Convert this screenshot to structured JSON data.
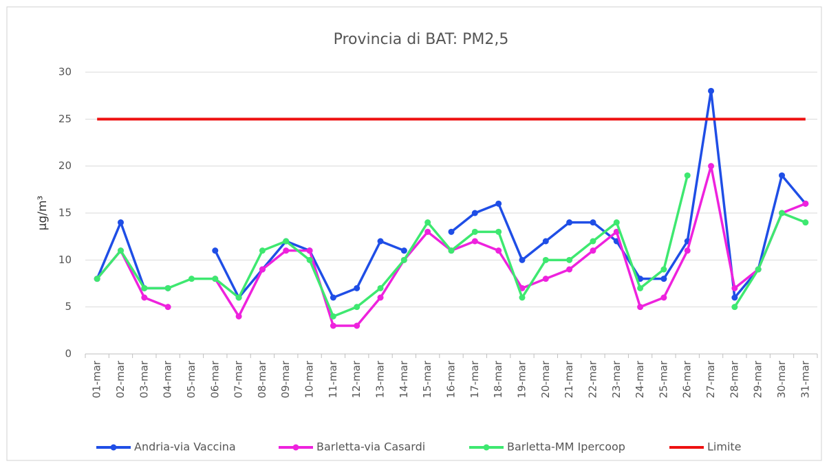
{
  "chart_data": {
    "type": "line",
    "title": "Provincia di BAT: PM2,5",
    "y_label": "µg/m³",
    "categories": [
      "01-mar",
      "02-mar",
      "03-mar",
      "04-mar",
      "05-mar",
      "06-mar",
      "07-mar",
      "08-mar",
      "09-mar",
      "10-mar",
      "11-mar",
      "12-mar",
      "13-mar",
      "14-mar",
      "15-mar",
      "16-mar",
      "17-mar",
      "18-mar",
      "19-mar",
      "20-mar",
      "21-mar",
      "22-mar",
      "23-mar",
      "24-mar",
      "25-mar",
      "26-mar",
      "27-mar",
      "28-mar",
      "29-mar",
      "30-mar",
      "31-mar"
    ],
    "series": [
      {
        "name": "Andria-via Vaccina",
        "color": "#1f4ee6",
        "markers": true,
        "values": [
          8,
          14,
          7,
          7,
          null,
          11,
          6,
          9,
          12,
          11,
          6,
          7,
          12,
          11,
          null,
          13,
          15,
          16,
          10,
          12,
          14,
          14,
          12,
          8,
          8,
          12,
          28,
          6,
          9,
          19,
          16
        ]
      },
      {
        "name": "Barletta-via Casardi",
        "color": "#ee22dd",
        "markers": true,
        "values": [
          8,
          11,
          6,
          5,
          null,
          8,
          4,
          9,
          11,
          11,
          3,
          3,
          6,
          10,
          13,
          11,
          12,
          11,
          7,
          8,
          9,
          11,
          13,
          5,
          6,
          11,
          20,
          7,
          9,
          15,
          16
        ]
      },
      {
        "name": "Barletta-MM Ipercoop",
        "color": "#3ee870",
        "markers": true,
        "values": [
          8,
          11,
          7,
          7,
          8,
          8,
          6,
          11,
          12,
          10,
          4,
          5,
          7,
          10,
          14,
          11,
          13,
          13,
          6,
          10,
          10,
          12,
          14,
          7,
          9,
          19,
          null,
          5,
          9,
          15,
          14
        ]
      },
      {
        "name": "Limite",
        "color": "#ee1111",
        "markers": false,
        "values": [
          25,
          25,
          25,
          25,
          25,
          25,
          25,
          25,
          25,
          25,
          25,
          25,
          25,
          25,
          25,
          25,
          25,
          25,
          25,
          25,
          25,
          25,
          25,
          25,
          25,
          25,
          25,
          25,
          25,
          25,
          25
        ]
      }
    ],
    "ylim": [
      0,
      30
    ],
    "yticks": [
      0,
      5,
      10,
      15,
      20,
      25,
      30
    ],
    "grid": true,
    "legend": "bottom"
  }
}
